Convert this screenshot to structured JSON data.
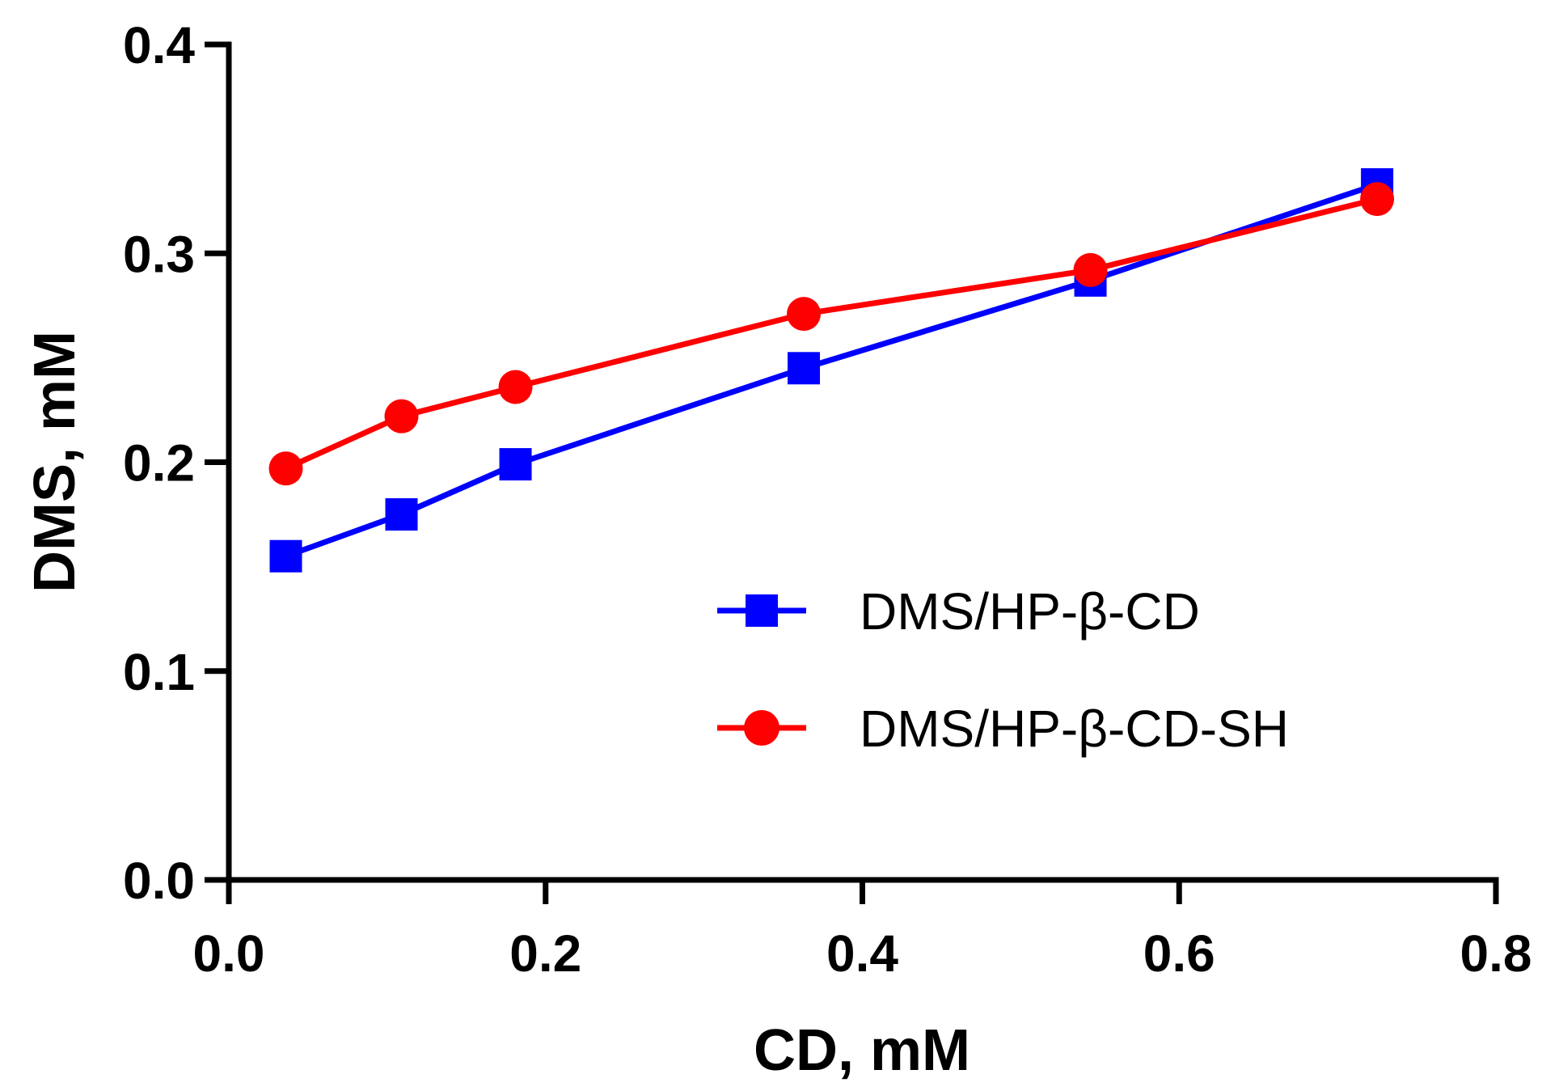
{
  "chart_data": {
    "type": "line",
    "title": "",
    "xlabel": "CD, mM",
    "ylabel": "DMS, mM",
    "xlim": [
      0.0,
      0.8
    ],
    "ylim": [
      0.0,
      0.4
    ],
    "xticks": [
      0.0,
      0.2,
      0.4,
      0.6,
      0.8
    ],
    "xtick_labels": [
      "0.0",
      "0.2",
      "0.4",
      "0.6",
      "0.8"
    ],
    "yticks": [
      0.0,
      0.1,
      0.2,
      0.3,
      0.4
    ],
    "ytick_labels": [
      "0.0",
      "0.1",
      "0.2",
      "0.3",
      "0.4"
    ],
    "grid": false,
    "legend_position": "center-right",
    "series": [
      {
        "name": "DMS/HP-β-CD",
        "color": "#0000ff",
        "marker": "square",
        "x": [
          0.036,
          0.109,
          0.181,
          0.363,
          0.544,
          0.725
        ],
        "y": [
          0.155,
          0.175,
          0.199,
          0.245,
          0.287,
          0.333
        ]
      },
      {
        "name": "DMS/HP-β-CD-SH",
        "color": "#ff0000",
        "marker": "circle",
        "x": [
          0.036,
          0.109,
          0.181,
          0.363,
          0.544,
          0.725
        ],
        "y": [
          0.197,
          0.222,
          0.236,
          0.271,
          0.292,
          0.326
        ]
      }
    ]
  }
}
